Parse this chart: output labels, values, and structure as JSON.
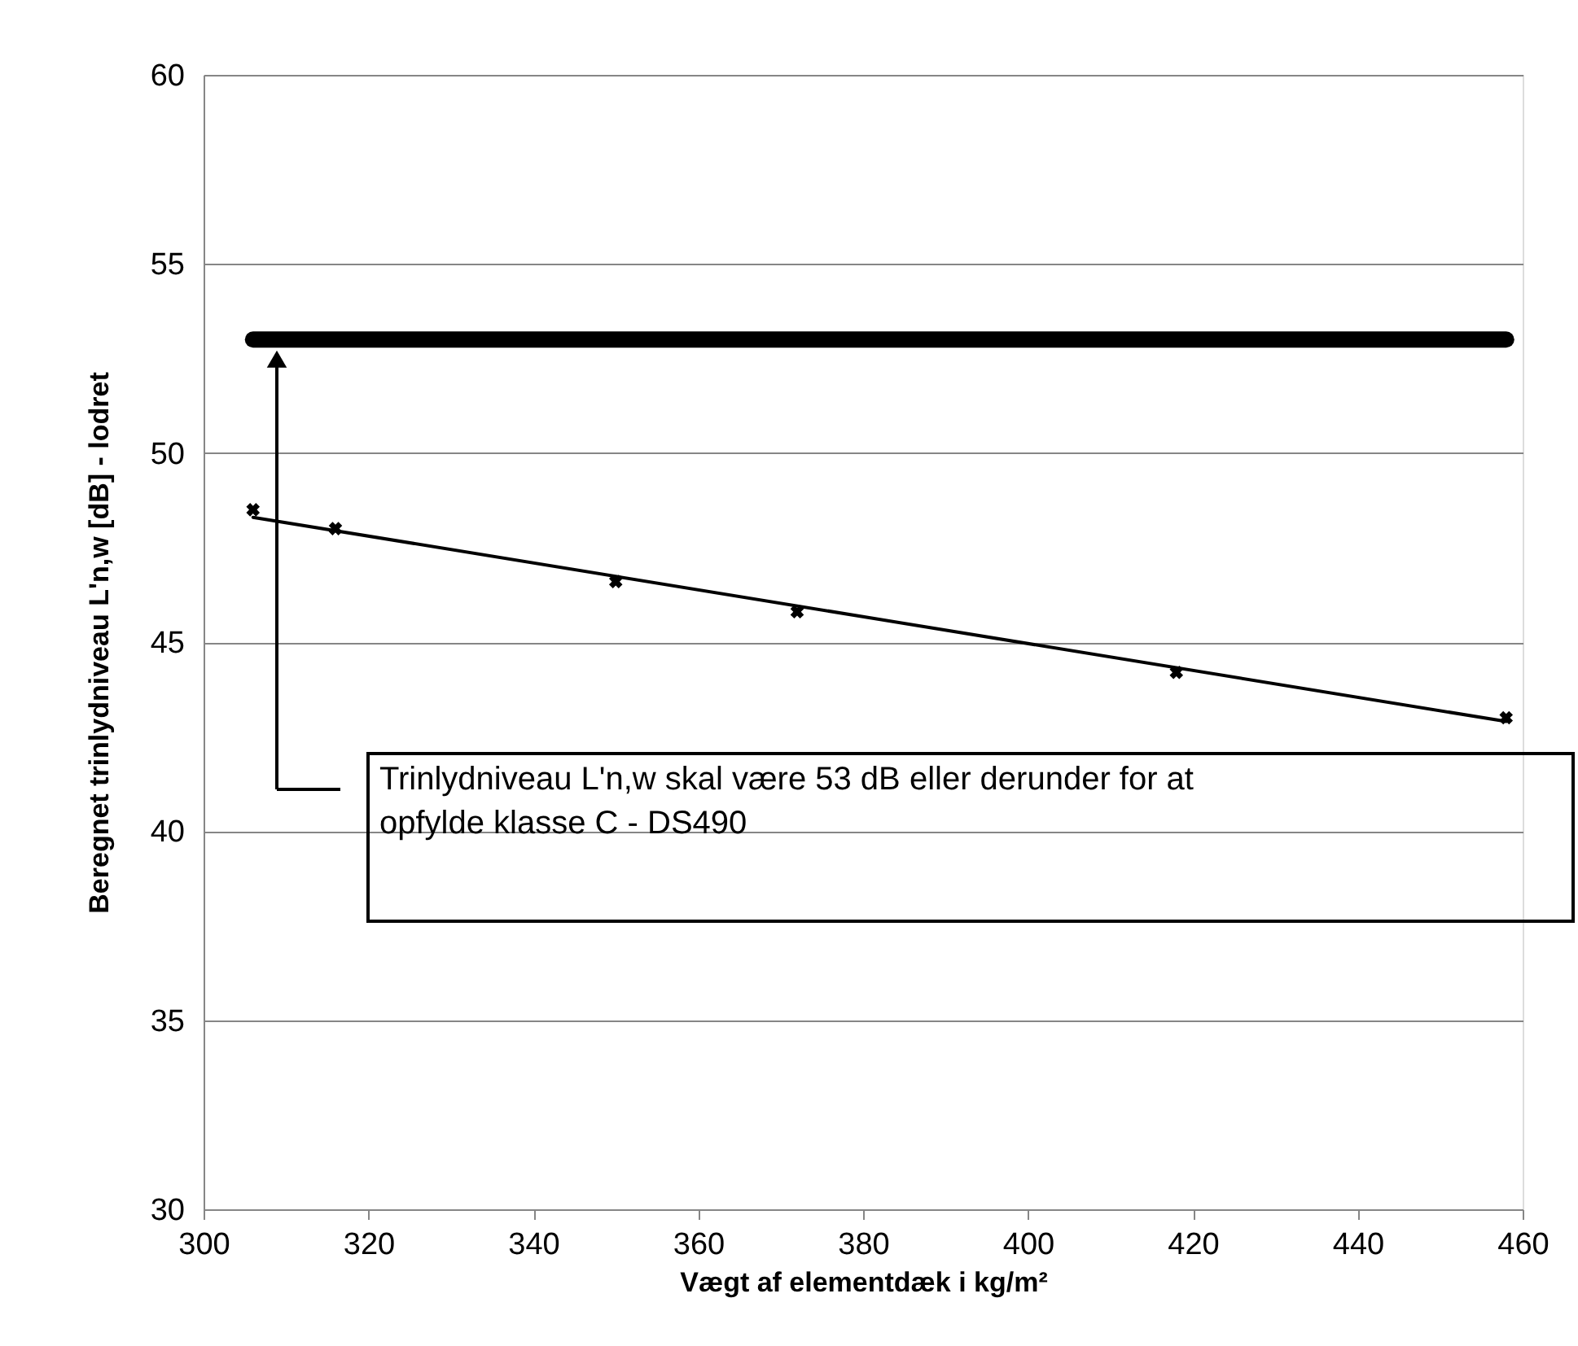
{
  "chart_data": {
    "type": "scatter",
    "xlabel": "Vægt af elementdæk i kg/m²",
    "ylabel": "Beregnet trinlydniveau L'n,w [dB] - lodret",
    "xlim": [
      300,
      460
    ],
    "xticks": [
      300,
      320,
      340,
      360,
      380,
      400,
      420,
      440,
      460
    ],
    "ylim": [
      30,
      60
    ],
    "yticks": [
      30,
      35,
      40,
      45,
      50,
      55,
      60
    ],
    "grid": "y",
    "series": [
      {
        "color": "#000000",
        "marker": "cross",
        "x": [
          306,
          316,
          350,
          372,
          418,
          458
        ],
        "values": [
          48.5,
          48.0,
          46.6,
          45.8,
          44.2,
          43.0
        ]
      },
      {
        "type": "line",
        "color": "#000000",
        "marker": "none",
        "line_style": "solid",
        "x": [
          306,
          458
        ],
        "values": [
          48.3,
          42.9
        ]
      }
    ],
    "ref_lines": [
      {
        "axis": "y",
        "value": 53,
        "color": "#000000",
        "line_style": "solid",
        "label": "Trinlydniveau L'n,w skal være 53 dB eller derunder for at opfylde klasse C - DS490"
      }
    ]
  }
}
